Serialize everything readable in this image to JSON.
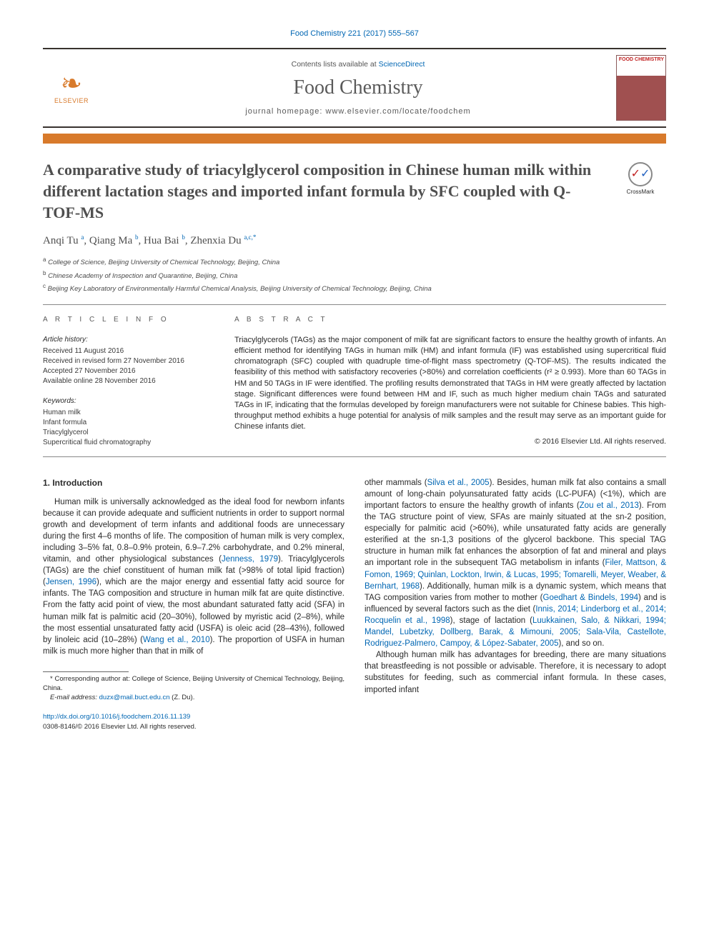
{
  "journal_ref": "Food Chemistry 221 (2017) 555–567",
  "header": {
    "contents_prefix": "Contents lists available at ",
    "contents_link": "ScienceDirect",
    "journal_title": "Food Chemistry",
    "homepage_label": "journal homepage: www.elsevier.com/locate/foodchem",
    "publisher": "ELSEVIER",
    "cover_text": "FOOD CHEMISTRY"
  },
  "crossmark_label": "CrossMark",
  "title": "A comparative study of triacylglycerol composition in Chinese human milk within different lactation stages and imported infant formula by SFC coupled with Q-TOF-MS",
  "authors_html": "Anqi Tu <sup>a</sup>, Qiang Ma <sup>b</sup>, Hua Bai <sup>b</sup>, Zhenxia Du <sup>a,c,*</sup>",
  "affiliations": [
    {
      "sup": "a",
      "text": "College of Science, Beijing University of Chemical Technology, Beijing, China"
    },
    {
      "sup": "b",
      "text": "Chinese Academy of Inspection and Quarantine, Beijing, China"
    },
    {
      "sup": "c",
      "text": "Beijing Key Laboratory of Environmentally Harmful Chemical Analysis, Beijing University of Chemical Technology, Beijing, China"
    }
  ],
  "article_info": {
    "head": "A R T I C L E   I N F O",
    "history_label": "Article history:",
    "history": [
      "Received 11 August 2016",
      "Received in revised form 27 November 2016",
      "Accepted 27 November 2016",
      "Available online 28 November 2016"
    ],
    "keywords_label": "Keywords:",
    "keywords": [
      "Human milk",
      "Infant formula",
      "Triacylglycerol",
      "Supercritical fluid chromatography"
    ]
  },
  "abstract": {
    "head": "A B S T R A C T",
    "text": "Triacylglycerols (TAGs) as the major component of milk fat are significant factors to ensure the healthy growth of infants. An efficient method for identifying TAGs in human milk (HM) and infant formula (IF) was established using supercritical fluid chromatograph (SFC) coupled with quadruple time-of-flight mass spectrometry (Q-TOF-MS). The results indicated the feasibility of this method with satisfactory recoveries (>80%) and correlation coefficients (r² ≥ 0.993). More than 60 TAGs in HM and 50 TAGs in IF were identified. The profiling results demonstrated that TAGs in HM were greatly affected by lactation stage. Significant differences were found between HM and IF, such as much higher medium chain TAGs and saturated TAGs in IF, indicating that the formulas developed by foreign manufacturers were not suitable for Chinese babies. This high-throughput method exhibits a huge potential for analysis of milk samples and the result may serve as an important guide for Chinese infants diet.",
    "copyright": "© 2016 Elsevier Ltd. All rights reserved."
  },
  "section_head": "1. Introduction",
  "col1": {
    "p1a": "Human milk is universally acknowledged as the ideal food for newborn infants because it can provide adequate and sufficient nutrients in order to support normal growth and development of term infants and additional foods are unnecessary during the first 4–6 months of life. The composition of human milk is very complex, including 3–5% fat, 0.8–0.9% protein, 6.9–7.2% carbohydrate, and 0.2% mineral, vitamin, and other physiological substances (",
    "c1": "Jenness, 1979",
    "p1b": "). Triacylglycerols (TAGs) are the chief constituent of human milk fat (>98% of total lipid fraction) (",
    "c2": "Jensen, 1996",
    "p1c": "), which are the major energy and essential fatty acid source for infants. The TAG composition and structure in human milk fat are quite distinctive. From the fatty acid point of view, the most abundant saturated fatty acid (SFA) in human milk fat is palmitic acid (20–30%), followed by myristic acid (2–8%), while the most essential unsaturated fatty acid (USFA) is oleic acid (28–43%), followed by linoleic acid (10–28%) (",
    "c3": "Wang et al., 2010",
    "p1d": "). The proportion of USFA in human milk is much more higher than that in milk of"
  },
  "col2": {
    "p1a": "other mammals (",
    "c1": "Silva et al., 2005",
    "p1b": "). Besides, human milk fat also contains a small amount of long-chain polyunsaturated fatty acids (LC-PUFA) (<1%), which are important factors to ensure the healthy growth of infants (",
    "c2": "Zou et al., 2013",
    "p1c": "). From the TAG structure point of view, SFAs are mainly situated at the sn-2 position, especially for palmitic acid (>60%), while unsaturated fatty acids are generally esterified at the sn-1,3 positions of the glycerol backbone. This special TAG structure in human milk fat enhances the absorption of fat and mineral and plays an important role in the subsequent TAG metabolism in infants (",
    "c3": "Filer, Mattson, & Fomon, 1969; Quinlan, Lockton, Irwin, & Lucas, 1995; Tomarelli, Meyer, Weaber, & Bernhart, 1968",
    "p1d": "). Additionally, human milk is a dynamic system, which means that TAG composition varies from mother to mother (",
    "c4": "Goedhart & Bindels, 1994",
    "p1e": ") and is influenced by several factors such as the diet (",
    "c5": "Innis, 2014; Linderborg et al., 2014; Rocquelin et al., 1998",
    "p1f": "), stage of lactation (",
    "c6": "Luukkainen, Salo, & Nikkari, 1994; Mandel, Lubetzky, Dollberg, Barak, & Mimouni, 2005; Sala-Vila, Castellote, Rodriguez-Palmero, Campoy, & López-Sabater, 2005",
    "p1g": "), and so on.",
    "p2": "Although human milk has advantages for breeding, there are many situations that breastfeeding is not possible or advisable. Therefore, it is necessary to adopt substitutes for feeding, such as commercial infant formula. In these cases, imported infant"
  },
  "footnote": {
    "corresp": "* Corresponding author at: College of Science, Beijing University of Chemical Technology, Beijing, China.",
    "email_label": "E-mail address:",
    "email": "duzx@mail.buct.edu.cn",
    "email_suffix": "(Z. Du)."
  },
  "footer": {
    "doi": "http://dx.doi.org/10.1016/j.foodchem.2016.11.139",
    "issn": "0308-8146/© 2016 Elsevier Ltd. All rights reserved."
  },
  "colors": {
    "link": "#0066b3",
    "accent": "#d87a2b",
    "rule": "#888888",
    "text": "#2a2a2a",
    "heading": "#4f4f4f"
  }
}
